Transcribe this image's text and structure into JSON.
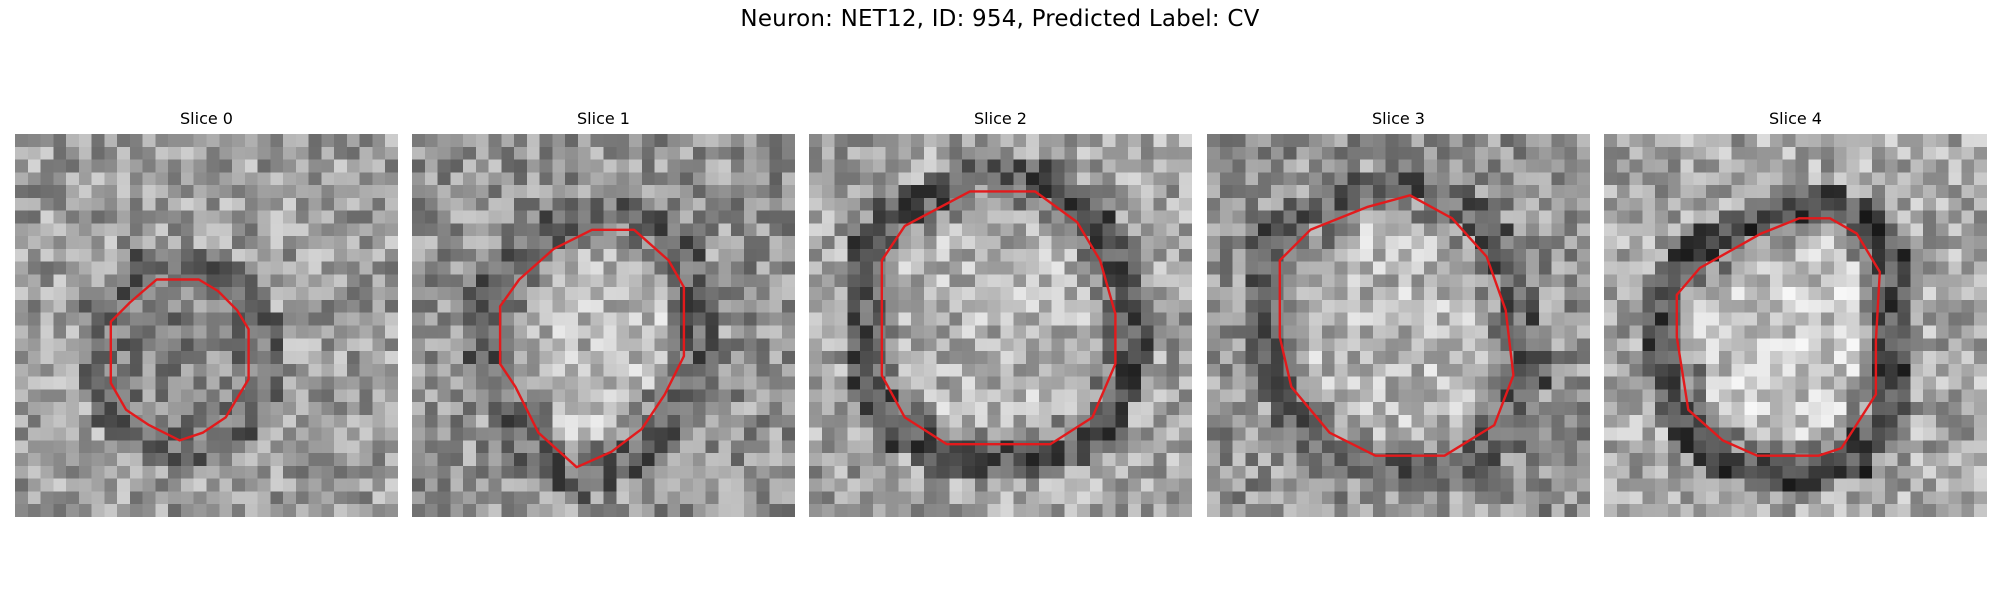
{
  "figure": {
    "title": "Neuron: NET12, ID: 954, Predicted Label: CV",
    "contour_color": "#e31a1c",
    "colormap": "gray",
    "grid": "30x30 pixels per slice",
    "panels": [
      {
        "title": "Slice 0",
        "seed": 11,
        "inner_mean": 0.52,
        "ring_mean": 0.42,
        "bg_mean": 0.62,
        "contour": [
          [
            0.37,
            0.38
          ],
          [
            0.48,
            0.38
          ],
          [
            0.53,
            0.41
          ],
          [
            0.58,
            0.46
          ],
          [
            0.61,
            0.51
          ],
          [
            0.61,
            0.64
          ],
          [
            0.55,
            0.74
          ],
          [
            0.49,
            0.78
          ],
          [
            0.43,
            0.8
          ],
          [
            0.35,
            0.76
          ],
          [
            0.29,
            0.72
          ],
          [
            0.25,
            0.65
          ],
          [
            0.25,
            0.49
          ],
          [
            0.3,
            0.44
          ]
        ]
      },
      {
        "title": "Slice 1",
        "seed": 23,
        "inner_mean": 0.72,
        "ring_mean": 0.4,
        "bg_mean": 0.58,
        "contour": [
          [
            0.47,
            0.25
          ],
          [
            0.58,
            0.25
          ],
          [
            0.67,
            0.33
          ],
          [
            0.71,
            0.4
          ],
          [
            0.71,
            0.58
          ],
          [
            0.66,
            0.68
          ],
          [
            0.6,
            0.77
          ],
          [
            0.52,
            0.83
          ],
          [
            0.43,
            0.87
          ],
          [
            0.33,
            0.78
          ],
          [
            0.27,
            0.66
          ],
          [
            0.23,
            0.6
          ],
          [
            0.23,
            0.45
          ],
          [
            0.28,
            0.38
          ],
          [
            0.37,
            0.3
          ]
        ]
      },
      {
        "title": "Slice 2",
        "seed": 37,
        "inner_mean": 0.7,
        "ring_mean": 0.34,
        "bg_mean": 0.64,
        "contour": [
          [
            0.42,
            0.15
          ],
          [
            0.59,
            0.15
          ],
          [
            0.7,
            0.23
          ],
          [
            0.76,
            0.33
          ],
          [
            0.8,
            0.47
          ],
          [
            0.8,
            0.6
          ],
          [
            0.74,
            0.74
          ],
          [
            0.63,
            0.81
          ],
          [
            0.52,
            0.81
          ],
          [
            0.36,
            0.81
          ],
          [
            0.25,
            0.74
          ],
          [
            0.19,
            0.63
          ],
          [
            0.19,
            0.33
          ],
          [
            0.25,
            0.24
          ]
        ]
      },
      {
        "title": "Slice 3",
        "seed": 53,
        "inner_mean": 0.72,
        "ring_mean": 0.38,
        "bg_mean": 0.58,
        "contour": [
          [
            0.42,
            0.19
          ],
          [
            0.53,
            0.16
          ],
          [
            0.64,
            0.22
          ],
          [
            0.73,
            0.32
          ],
          [
            0.78,
            0.46
          ],
          [
            0.8,
            0.63
          ],
          [
            0.75,
            0.76
          ],
          [
            0.62,
            0.84
          ],
          [
            0.44,
            0.84
          ],
          [
            0.32,
            0.78
          ],
          [
            0.22,
            0.66
          ],
          [
            0.19,
            0.53
          ],
          [
            0.19,
            0.33
          ],
          [
            0.27,
            0.25
          ]
        ]
      },
      {
        "title": "Slice 4",
        "seed": 71,
        "inner_mean": 0.78,
        "ring_mean": 0.3,
        "bg_mean": 0.66,
        "contour": [
          [
            0.41,
            0.26
          ],
          [
            0.51,
            0.22
          ],
          [
            0.59,
            0.22
          ],
          [
            0.66,
            0.26
          ],
          [
            0.72,
            0.36
          ],
          [
            0.71,
            0.54
          ],
          [
            0.71,
            0.68
          ],
          [
            0.62,
            0.82
          ],
          [
            0.56,
            0.84
          ],
          [
            0.4,
            0.84
          ],
          [
            0.31,
            0.8
          ],
          [
            0.22,
            0.72
          ],
          [
            0.19,
            0.53
          ],
          [
            0.19,
            0.42
          ],
          [
            0.25,
            0.35
          ]
        ]
      }
    ]
  }
}
